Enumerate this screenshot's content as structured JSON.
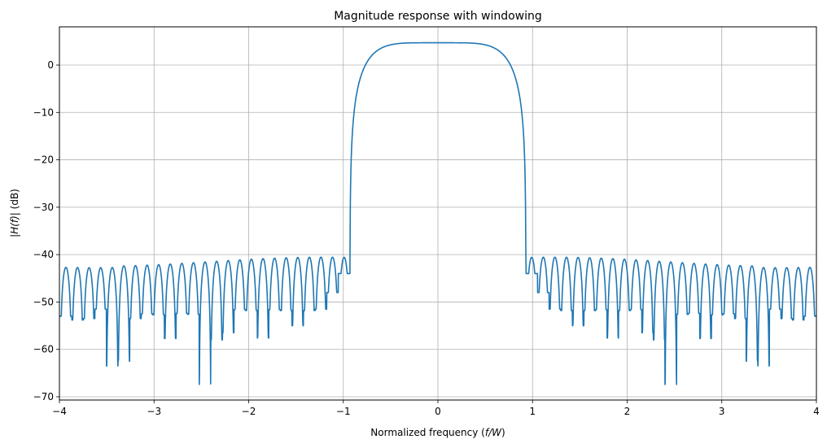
{
  "chart_data": {
    "type": "line",
    "title": "Magnitude response with windowing",
    "xlabel": "Normalized frequency (f/W)",
    "xlabel_parts": {
      "pre": "Normalized frequency (",
      "italic": "f/W",
      "post": ")"
    },
    "ylabel": "|H(f)| (dB)",
    "ylabel_parts": {
      "pre": "|",
      "italic": "H(f)",
      "post": "| (dB)"
    },
    "xlim": [
      -4,
      4
    ],
    "ylim": [
      -71,
      8
    ],
    "xticks": [
      -4,
      -3,
      -2,
      -1,
      0,
      1,
      2,
      3,
      4
    ],
    "xtick_labels": [
      "−4",
      "−3",
      "−2",
      "−1",
      "0",
      "1",
      "2",
      "3",
      "4"
    ],
    "yticks": [
      0,
      -10,
      -20,
      -30,
      -40,
      -50,
      -60,
      -70
    ],
    "ytick_labels": [
      "0",
      "−10",
      "−20",
      "−30",
      "−40",
      "−50",
      "−60",
      "−70"
    ],
    "grid": true,
    "legend": null,
    "series": [
      {
        "name": "|H(f)| dB",
        "color": "#1f77b4",
        "description": "Symmetric about f=0. Passband flat at ~4.6 dB for |f|<0.4, rolling off to ~-44 dB at |f|=0.95. Stopband sidelobe peaks near -40 to -42 dB with nulls between -48 and -67 dB.",
        "points": [
          [
            -4.0,
            -41.8
          ],
          [
            -3.95,
            -53.8
          ],
          [
            -3.85,
            -41.5
          ],
          [
            -3.78,
            -53.5
          ],
          [
            -3.66,
            -41.6
          ],
          [
            -3.58,
            -63.5
          ],
          [
            -3.48,
            -41.5
          ],
          [
            -3.45,
            -62.5
          ],
          [
            -3.3,
            -41.4
          ],
          [
            -3.2,
            -52.7
          ],
          [
            -3.0,
            -41.2
          ],
          [
            -2.95,
            -57.7
          ],
          [
            -2.8,
            -41.2
          ],
          [
            -2.7,
            -52.6
          ],
          [
            -2.6,
            -41.0
          ],
          [
            -2.45,
            -67.4
          ],
          [
            -2.3,
            -40.8
          ],
          [
            -2.35,
            -56.5
          ],
          [
            -2.1,
            -40.5
          ],
          [
            -1.97,
            -57.6
          ],
          [
            -1.8,
            -40.3
          ],
          [
            -1.6,
            -51.8
          ],
          [
            -1.45,
            -40.0
          ],
          [
            -1.48,
            -55.0
          ],
          [
            -1.3,
            -40.3
          ],
          [
            -1.2,
            -51.6
          ],
          [
            -1.1,
            -41.2
          ],
          [
            -1.01,
            -48.0
          ],
          [
            -0.97,
            -43.8
          ],
          [
            -0.95,
            -39.6
          ],
          [
            -0.93,
            -44.0
          ],
          [
            -0.9,
            -25.0
          ],
          [
            -0.8,
            -8.0
          ],
          [
            -0.6,
            1.5
          ],
          [
            -0.4,
            4.4
          ],
          [
            0.0,
            4.7
          ],
          [
            0.4,
            4.4
          ],
          [
            0.6,
            1.5
          ],
          [
            0.8,
            -8.0
          ],
          [
            0.9,
            -25.0
          ],
          [
            0.93,
            -44.0
          ],
          [
            0.95,
            -39.6
          ],
          [
            0.97,
            -43.8
          ],
          [
            1.01,
            -48.0
          ],
          [
            1.1,
            -41.2
          ],
          [
            1.2,
            -51.6
          ],
          [
            1.3,
            -40.3
          ],
          [
            1.48,
            -55.0
          ],
          [
            1.45,
            -40.0
          ],
          [
            1.6,
            -51.8
          ],
          [
            1.8,
            -40.3
          ],
          [
            1.97,
            -57.6
          ],
          [
            2.1,
            -40.5
          ],
          [
            2.35,
            -56.5
          ],
          [
            2.3,
            -40.8
          ],
          [
            2.45,
            -67.4
          ],
          [
            2.6,
            -41.0
          ],
          [
            2.7,
            -52.6
          ],
          [
            2.8,
            -41.2
          ],
          [
            2.95,
            -57.7
          ],
          [
            3.0,
            -41.2
          ],
          [
            3.2,
            -52.7
          ],
          [
            3.3,
            -41.4
          ],
          [
            3.45,
            -62.5
          ],
          [
            3.48,
            -41.5
          ],
          [
            3.58,
            -63.5
          ],
          [
            3.66,
            -41.6
          ],
          [
            3.78,
            -53.5
          ],
          [
            3.85,
            -41.5
          ],
          [
            3.95,
            -53.8
          ],
          [
            4.0,
            -41.8
          ]
        ]
      }
    ]
  }
}
